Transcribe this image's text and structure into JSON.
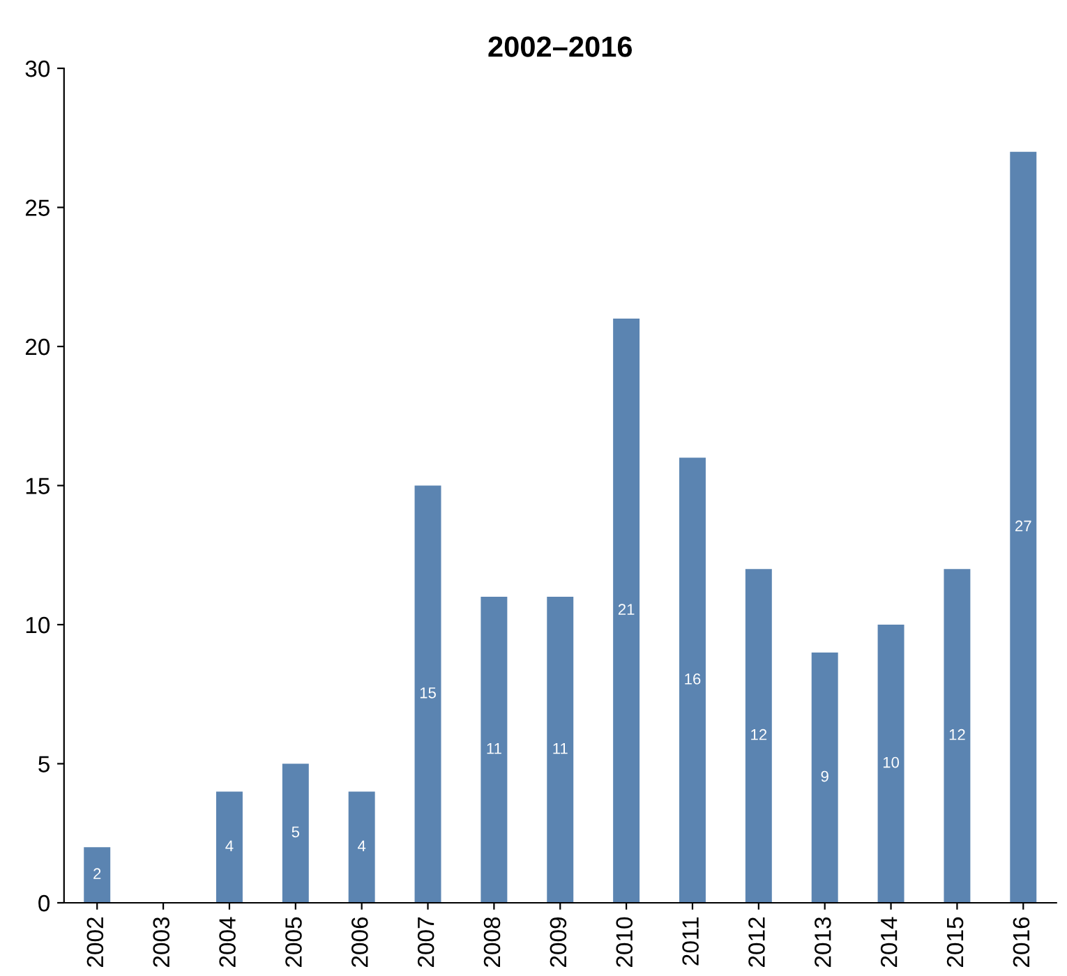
{
  "chart_data": {
    "type": "bar",
    "title": "2002–2016",
    "categories": [
      "2002",
      "2003",
      "2004",
      "2005",
      "2006",
      "2007",
      "2008",
      "2009",
      "2010",
      "2011",
      "2012",
      "2013",
      "2014",
      "2015",
      "2016"
    ],
    "values": [
      2,
      0,
      4,
      5,
      4,
      15,
      11,
      11,
      21,
      16,
      12,
      9,
      10,
      12,
      27
    ],
    "value_labels": [
      "2",
      null,
      "4",
      "5",
      "4",
      "15",
      "11",
      "11",
      "21",
      "16",
      "12",
      "9",
      "10",
      "12",
      "27"
    ],
    "color": "#5b84b1",
    "ylim": [
      0,
      30
    ],
    "yticks": [
      0,
      5,
      10,
      15,
      20,
      25,
      30
    ],
    "grid": false,
    "legend": false
  }
}
